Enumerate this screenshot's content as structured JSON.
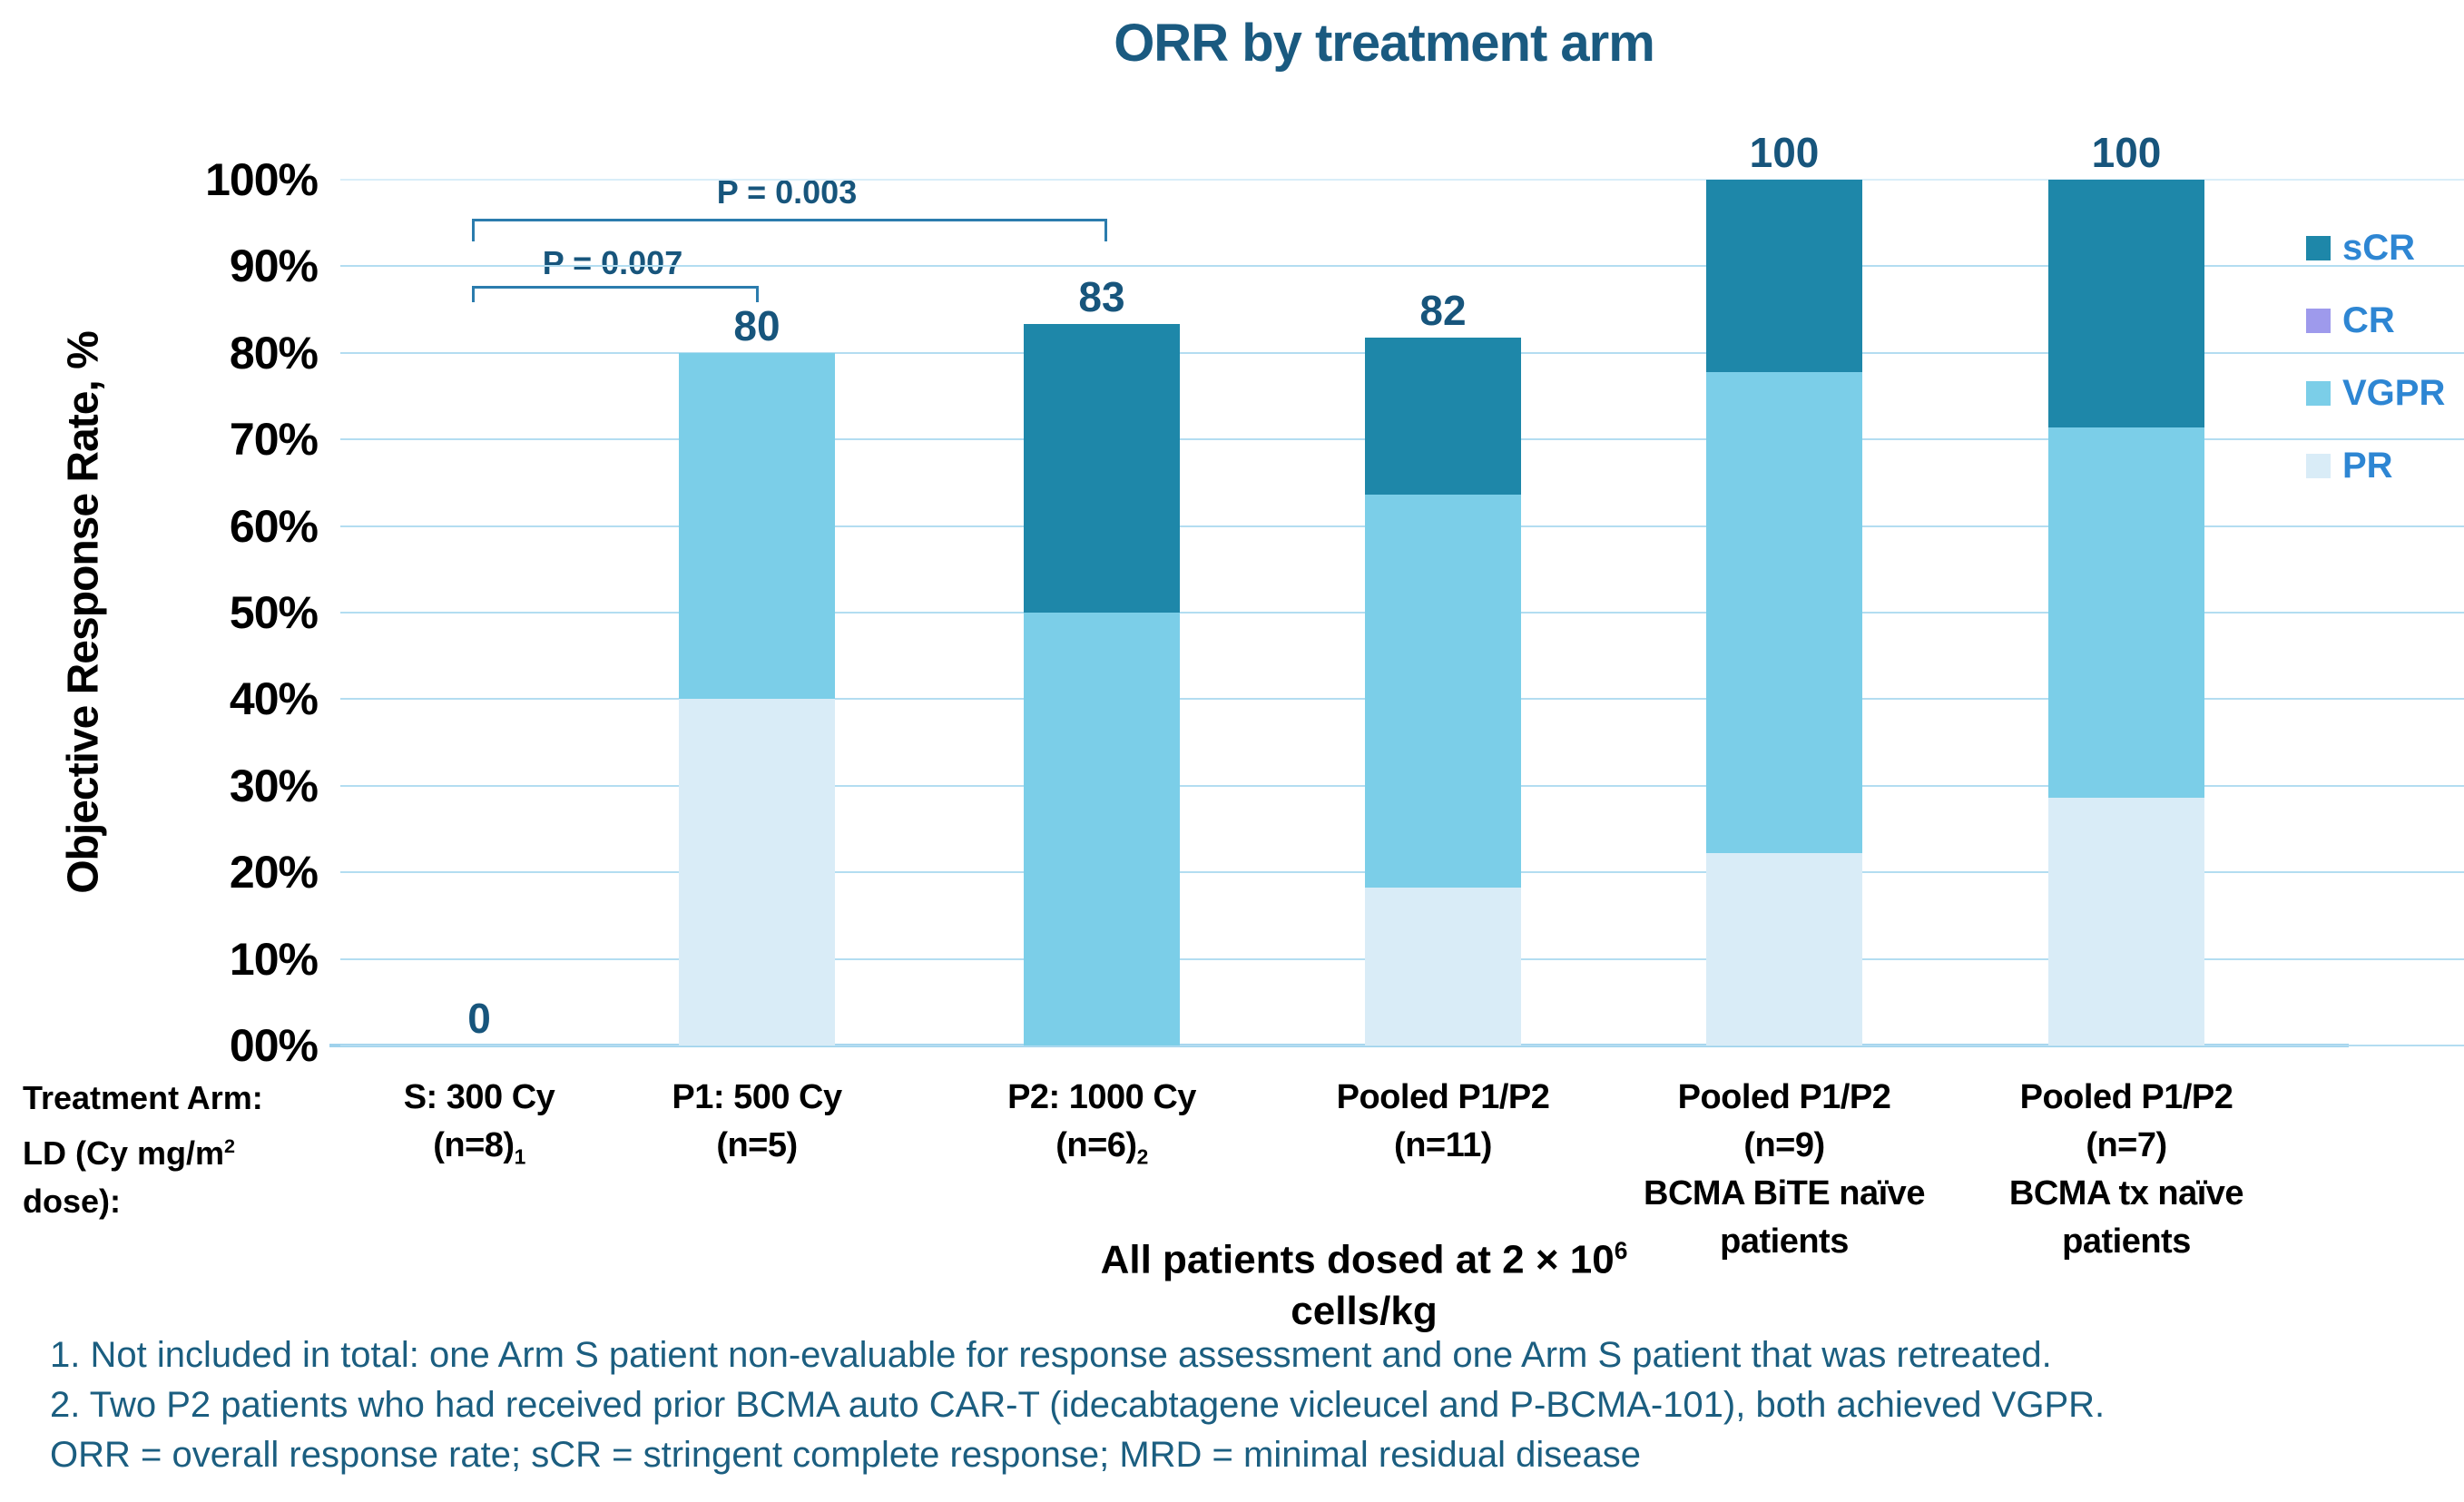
{
  "title": "ORR by treatment arm",
  "colors": {
    "sCR": "#1E87A9",
    "CR": "#9E9AEC",
    "VGPR": "#7BCEE8",
    "PR": "#D9ECF7",
    "gridline": "#B3DDF1",
    "baseline": "#9FD2EC",
    "bracket": "#2B7CAD",
    "label_navy": "#17557C",
    "legend_text": "#2E86D3",
    "footnote_text": "#1B5E80",
    "title_text": "#1A5A80"
  },
  "legend": [
    {
      "label": "sCR",
      "color": "#1E87A9"
    },
    {
      "label": "CR",
      "color": "#9E9AEC"
    },
    {
      "label": "VGPR",
      "color": "#7BCEE8"
    },
    {
      "label": "PR",
      "color": "#D9ECF7"
    }
  ],
  "annotations": {
    "p_long": "P = 0.003",
    "p_short": "P = 0.007"
  },
  "axis_header": {
    "line1": "Treatment Arm:",
    "line2_pre": "LD (Cy mg/m",
    "line2_sup": "2",
    "line2_post": " dose):"
  },
  "dose_note": {
    "line1_pre": "All patients dosed at 2 × 10",
    "line1_sup": "6",
    "line2": "cells/kg"
  },
  "footnotes": [
    "1. Not included in total: one Arm S patient non-evaluable for response assessment and one Arm S patient that was retreated.",
    "2. Two P2 patients who had received prior BCMA auto CAR-T (idecabtagene vicleucel and P-BCMA-101), both achieved VGPR.",
    "ORR = overall response rate; sCR = stringent complete response; MRD = minimal residual disease"
  ],
  "chart_data": {
    "type": "bar",
    "subtype": "stacked",
    "title": "ORR by treatment arm",
    "ylabel": "Objective Response Rate, %",
    "xlabel": "",
    "ylim": [
      0,
      100
    ],
    "grid": true,
    "legend_position": "right",
    "y_ticks": [
      "100%",
      "90%",
      "80%",
      "70%",
      "60%",
      "50%",
      "40%",
      "30%",
      "20%",
      "10%",
      "00%"
    ],
    "series_order_bottom_to_top": [
      "PR",
      "VGPR",
      "sCR"
    ],
    "bars": [
      {
        "line1": "S: 300 Cy",
        "line2": "(n=8)",
        "line2_sub": "1",
        "value_label": "0",
        "total": 0,
        "segments": []
      },
      {
        "line1": "P1: 500 Cy",
        "line2": "(n=5)",
        "value_label": "80",
        "total": 80,
        "segments": [
          {
            "cat": "PR",
            "value": 40
          },
          {
            "cat": "VGPR",
            "value": 40
          }
        ]
      },
      {
        "line1": "P2: 1000 Cy",
        "line2": "(n=6)",
        "line2_sub": "2",
        "value_label": "83",
        "total": 83.3,
        "segments": [
          {
            "cat": "VGPR",
            "value": 50
          },
          {
            "cat": "sCR",
            "value": 33.3
          }
        ]
      },
      {
        "line1": "Pooled P1/P2",
        "line2": "(n=11)",
        "value_label": "82",
        "total": 81.8,
        "segments": [
          {
            "cat": "PR",
            "value": 18.2
          },
          {
            "cat": "VGPR",
            "value": 45.4
          },
          {
            "cat": "sCR",
            "value": 18.2
          }
        ]
      },
      {
        "line1": "Pooled P1/P2",
        "line2": "(n=9)",
        "line3": "BCMA BiTE naïve",
        "line4": "patients",
        "value_label": "100",
        "total": 100,
        "segments": [
          {
            "cat": "PR",
            "value": 22.2
          },
          {
            "cat": "VGPR",
            "value": 55.6
          },
          {
            "cat": "sCR",
            "value": 22.2
          }
        ]
      },
      {
        "line1": "Pooled P1/P2",
        "line2": "(n=7)",
        "line3": "BCMA tx naïve",
        "line4": "patients",
        "value_label": "100",
        "total": 100,
        "segments": [
          {
            "cat": "PR",
            "value": 28.6
          },
          {
            "cat": "VGPR",
            "value": 42.8
          },
          {
            "cat": "sCR",
            "value": 28.6
          }
        ]
      }
    ],
    "p_value_comparisons": [
      {
        "label": "P = 0.007",
        "between": [
          "S: 300 Cy",
          "P1: 500 Cy"
        ]
      },
      {
        "label": "P = 0.003",
        "between": [
          "S: 300 Cy",
          "P2: 1000 Cy"
        ]
      }
    ]
  }
}
